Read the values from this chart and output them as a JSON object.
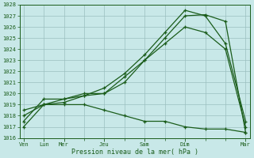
{
  "xlabel": "Pression niveau de la mer( hPa )",
  "xmajor_labels": [
    "Ven",
    "Lun",
    "Mer",
    "Jeu",
    "Sam",
    "Dim",
    "Mar"
  ],
  "xmajor_pos": [
    0,
    1,
    2,
    4,
    6,
    8,
    11
  ],
  "xminor_pos": [
    0,
    1,
    2,
    3,
    4,
    5,
    6,
    7,
    8,
    9,
    10,
    11
  ],
  "ylim": [
    1016,
    1028
  ],
  "yticks": [
    1016,
    1017,
    1018,
    1019,
    1020,
    1021,
    1022,
    1023,
    1024,
    1025,
    1026,
    1027,
    1028
  ],
  "bg_color": "#c8e8e8",
  "grid_color": "#9bbfbf",
  "line_color": "#1a5c1a",
  "line1_x": [
    0,
    1,
    2,
    3,
    4,
    5,
    6,
    7,
    8,
    9,
    10,
    11
  ],
  "line1_y": [
    1017.0,
    1019.0,
    1019.2,
    1019.8,
    1020.0,
    1021.5,
    1023.0,
    1025.0,
    1027.0,
    1027.1,
    1026.5,
    1016.5
  ],
  "line2_x": [
    0,
    1,
    2,
    3,
    4,
    5,
    6,
    7,
    8,
    9,
    10,
    11
  ],
  "line2_y": [
    1018.0,
    1019.0,
    1019.5,
    1020.0,
    1020.0,
    1021.0,
    1023.0,
    1024.5,
    1026.0,
    1025.5,
    1024.0,
    1017.0
  ],
  "line3_x": [
    0,
    1,
    2,
    3,
    4,
    5,
    6,
    7,
    8,
    9,
    10,
    11
  ],
  "line3_y": [
    1017.5,
    1019.5,
    1019.5,
    1019.8,
    1020.5,
    1021.8,
    1023.5,
    1025.5,
    1027.5,
    1027.0,
    1024.5,
    1017.5
  ],
  "line4_x": [
    0,
    1,
    2,
    3,
    4,
    5,
    6,
    7,
    8,
    9,
    10,
    11
  ],
  "line4_y": [
    1018.5,
    1019.0,
    1019.0,
    1019.0,
    1018.5,
    1018.0,
    1017.5,
    1017.5,
    1017.0,
    1016.8,
    1016.8,
    1016.5
  ],
  "xlim": [
    -0.2,
    11.2
  ],
  "lw": 0.9,
  "ms": 2.5
}
